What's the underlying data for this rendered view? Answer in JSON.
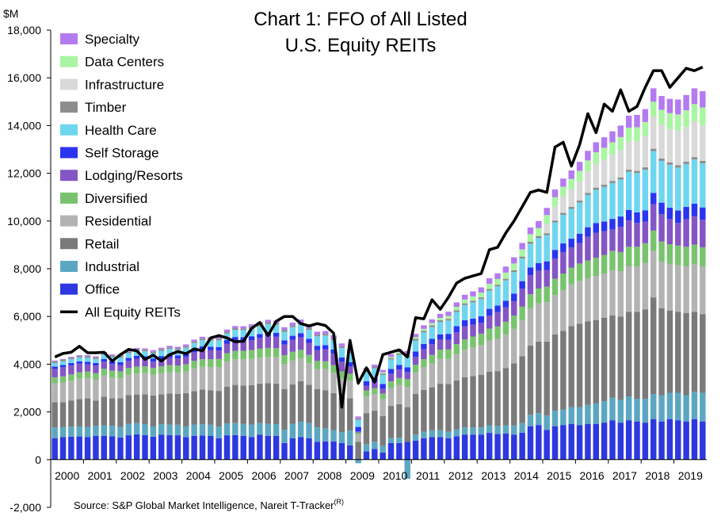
{
  "chart_data": {
    "type": "bar",
    "stacked": true,
    "title_lines": [
      "Chart 1: FFO of All Listed",
      "U.S. Equity REITs"
    ],
    "unit_label": "$M",
    "source": "Source: S&P Global Market Intelligence, Nareit T-Tracker",
    "source_sup": "(R)",
    "ylim": [
      -2000,
      18000
    ],
    "yticks": [
      -2000,
      0,
      2000,
      4000,
      6000,
      8000,
      10000,
      12000,
      14000,
      16000,
      18000
    ],
    "ytick_labels": [
      "-2,000",
      "0",
      "2,000",
      "4,000",
      "6,000",
      "8,000",
      "10,000",
      "12,000",
      "14,000",
      "16,000",
      "18,000"
    ],
    "xticks": [
      "2000",
      "2001",
      "2002",
      "2003",
      "2004",
      "2005",
      "2006",
      "2007",
      "2008",
      "2009",
      "2010",
      "2011",
      "2012",
      "2013",
      "2014",
      "2015",
      "2016",
      "2017",
      "2018",
      "2019"
    ],
    "quarters_per_year": 4,
    "grid": false,
    "legend_position": "top-left",
    "stack_order": [
      "Office",
      "Industrial",
      "Retail",
      "Residential",
      "Diversified",
      "Lodging/Resorts",
      "Self Storage",
      "Health Care",
      "Timber",
      "Infrastructure",
      "Data Centers",
      "Specialty"
    ],
    "series": [
      {
        "name": "Office",
        "color": "#2d38e0",
        "values": [
          900,
          940,
          960,
          970,
          950,
          990,
          1000,
          980,
          930,
          1020,
          1060,
          1030,
          960,
          1040,
          1030,
          1020,
          940,
          1000,
          1010,
          990,
          900,
          1020,
          1030,
          1000,
          950,
          1050,
          1000,
          990,
          700,
          900,
          950,
          900,
          750,
          760,
          760,
          700,
          600,
          0,
          350,
          450,
          300,
          700,
          700,
          750,
          800,
          900,
          950,
          950,
          900,
          980,
          1050,
          1050,
          1050,
          1120,
          1080,
          1100,
          1050,
          1130,
          1400,
          1450,
          1250,
          1400,
          1450,
          1500,
          1450,
          1500,
          1500,
          1550,
          1650,
          1550,
          1650,
          1600,
          1550,
          1700,
          1600,
          1700,
          1650,
          1600,
          1700,
          1600
        ]
      },
      {
        "name": "Industrial",
        "color": "#5ba7c2",
        "values": [
          450,
          420,
          420,
          420,
          420,
          430,
          440,
          440,
          440,
          480,
          470,
          460,
          430,
          450,
          440,
          440,
          450,
          470,
          480,
          470,
          480,
          490,
          500,
          500,
          520,
          480,
          500,
          500,
          550,
          600,
          640,
          640,
          600,
          550,
          480,
          450,
          620,
          -150,
          300,
          300,
          280,
          200,
          220,
          -800,
          250,
          270,
          280,
          280,
          270,
          290,
          300,
          300,
          300,
          320,
          330,
          340,
          380,
          400,
          480,
          500,
          600,
          650,
          650,
          700,
          750,
          800,
          850,
          900,
          950,
          950,
          1000,
          950,
          1000,
          1050,
          1100,
          1100,
          1150,
          1100,
          1150,
          1200
        ]
      },
      {
        "name": "Retail",
        "color": "#7a7a7a",
        "values": [
          1050,
          1050,
          1100,
          1150,
          1200,
          1050,
          1200,
          1150,
          1200,
          1200,
          1200,
          1250,
          1300,
          1250,
          1300,
          1300,
          1400,
          1400,
          1450,
          1450,
          1500,
          1550,
          1600,
          1600,
          1650,
          1650,
          1700,
          1700,
          1700,
          1650,
          1700,
          1600,
          1600,
          1600,
          1550,
          1450,
          1350,
          750,
          1300,
          1300,
          1250,
          1350,
          1400,
          1450,
          1700,
          1750,
          1800,
          1950,
          2000,
          2050,
          2100,
          2150,
          2200,
          2250,
          2300,
          2400,
          2600,
          2800,
          2900,
          3000,
          3100,
          3200,
          3300,
          3400,
          3500,
          3500,
          3500,
          3500,
          3450,
          3500,
          3550,
          3650,
          3750,
          4050,
          3650,
          3450,
          3400,
          3450,
          3350,
          3300
        ]
      },
      {
        "name": "Residential",
        "color": "#b3b3b3",
        "values": [
          800,
          820,
          830,
          850,
          850,
          880,
          890,
          880,
          850,
          860,
          880,
          880,
          870,
          880,
          890,
          880,
          900,
          950,
          950,
          970,
          1000,
          1050,
          1080,
          1100,
          1100,
          1100,
          1100,
          1100,
          1050,
          1000,
          950,
          900,
          850,
          880,
          850,
          800,
          750,
          300,
          700,
          700,
          700,
          750,
          800,
          850,
          900,
          950,
          1000,
          1050,
          1050,
          1100,
          1150,
          1200,
          1250,
          1300,
          1350,
          1400,
          1450,
          1500,
          1550,
          1600,
          1650,
          1650,
          1700,
          1750,
          1800,
          1800,
          1850,
          1850,
          1900,
          1900,
          1900,
          1900,
          1950,
          1950,
          1950,
          1950,
          1950,
          1950,
          2000,
          2000
        ]
      },
      {
        "name": "Diversified",
        "color": "#79c36f",
        "values": [
          250,
          260,
          260,
          270,
          270,
          270,
          280,
          280,
          280,
          280,
          290,
          290,
          290,
          290,
          300,
          300,
          310,
          320,
          320,
          330,
          340,
          350,
          350,
          360,
          370,
          370,
          380,
          380,
          380,
          370,
          360,
          350,
          340,
          330,
          320,
          300,
          280,
          80,
          250,
          250,
          240,
          280,
          300,
          320,
          330,
          340,
          360,
          380,
          400,
          420,
          440,
          460,
          480,
          500,
          520,
          540,
          560,
          580,
          600,
          620,
          650,
          680,
          700,
          700,
          720,
          740,
          760,
          780,
          800,
          800,
          820,
          820,
          820,
          850,
          840,
          830,
          820,
          820,
          810,
          800
        ]
      },
      {
        "name": "Lodging/Resorts",
        "color": "#8455c4",
        "values": [
          350,
          380,
          380,
          360,
          300,
          320,
          300,
          280,
          260,
          300,
          330,
          300,
          260,
          300,
          320,
          300,
          300,
          360,
          400,
          380,
          350,
          400,
          430,
          420,
          420,
          450,
          500,
          480,
          450,
          500,
          530,
          500,
          450,
          500,
          480,
          400,
          300,
          50,
          200,
          250,
          200,
          320,
          350,
          300,
          330,
          420,
          450,
          420,
          400,
          500,
          550,
          500,
          450,
          550,
          600,
          600,
          600,
          750,
          800,
          750,
          700,
          850,
          900,
          850,
          850,
          1000,
          1050,
          1000,
          900,
          1050,
          1100,
          1000,
          900,
          1100,
          1150,
          1050,
          950,
          1150,
          1200,
          1150
        ]
      },
      {
        "name": "Self Storage",
        "color": "#2a35f0",
        "values": [
          100,
          100,
          100,
          100,
          110,
          110,
          110,
          110,
          120,
          120,
          120,
          120,
          130,
          130,
          130,
          130,
          140,
          140,
          140,
          140,
          150,
          150,
          150,
          150,
          160,
          160,
          160,
          160,
          170,
          170,
          170,
          170,
          180,
          180,
          180,
          180,
          190,
          190,
          190,
          190,
          200,
          200,
          200,
          200,
          220,
          220,
          220,
          220,
          250,
          250,
          250,
          250,
          280,
          280,
          280,
          280,
          320,
          320,
          320,
          320,
          360,
          360,
          360,
          360,
          400,
          400,
          400,
          400,
          440,
          440,
          440,
          440,
          480,
          480,
          480,
          480,
          520,
          520,
          520,
          520
        ]
      },
      {
        "name": "Health Care",
        "color": "#6fd6ef",
        "values": [
          150,
          150,
          160,
          160,
          170,
          170,
          180,
          180,
          200,
          200,
          210,
          210,
          220,
          220,
          230,
          230,
          250,
          250,
          260,
          260,
          280,
          280,
          300,
          300,
          320,
          320,
          340,
          340,
          360,
          360,
          380,
          380,
          400,
          400,
          400,
          400,
          380,
          300,
          380,
          380,
          380,
          400,
          420,
          440,
          460,
          480,
          500,
          520,
          560,
          600,
          640,
          680,
          720,
          760,
          800,
          850,
          900,
          950,
          1000,
          1050,
          1100,
          1150,
          1200,
          1250,
          1300,
          1350,
          1400,
          1450,
          1500,
          1550,
          1600,
          1650,
          1700,
          1750,
          1750,
          1800,
          1800,
          1800,
          1850,
          1850
        ]
      },
      {
        "name": "Timber",
        "color": "#8d8d8d",
        "values": [
          60,
          60,
          60,
          60,
          60,
          60,
          60,
          60,
          60,
          60,
          60,
          60,
          60,
          60,
          60,
          60,
          60,
          60,
          60,
          60,
          70,
          70,
          70,
          70,
          80,
          80,
          80,
          80,
          80,
          80,
          80,
          80,
          70,
          70,
          70,
          70,
          60,
          60,
          60,
          60,
          60,
          60,
          60,
          60,
          70,
          70,
          70,
          70,
          70,
          70,
          70,
          70,
          70,
          70,
          70,
          70,
          80,
          80,
          80,
          80,
          80,
          80,
          80,
          80,
          90,
          90,
          90,
          90,
          90,
          90,
          90,
          90,
          100,
          100,
          100,
          100,
          100,
          100,
          100,
          100
        ]
      },
      {
        "name": "Infrastructure",
        "color": "#d9d9d9",
        "values": [
          0,
          0,
          0,
          0,
          0,
          0,
          0,
          0,
          0,
          0,
          0,
          0,
          0,
          0,
          0,
          0,
          0,
          0,
          0,
          0,
          0,
          0,
          0,
          0,
          0,
          0,
          0,
          0,
          0,
          0,
          0,
          0,
          0,
          0,
          0,
          0,
          0,
          0,
          0,
          0,
          0,
          0,
          0,
          0,
          0,
          0,
          0,
          0,
          0,
          0,
          0,
          0,
          0,
          0,
          0,
          0,
          0,
          0,
          0,
          0,
          400,
          600,
          700,
          750,
          800,
          900,
          1000,
          1050,
          1100,
          1150,
          1200,
          1250,
          1300,
          1350,
          1400,
          1400,
          1450,
          1450,
          1500,
          1500
        ]
      },
      {
        "name": "Data Centers",
        "color": "#a9f5a2",
        "values": [
          0,
          0,
          0,
          0,
          0,
          0,
          0,
          0,
          0,
          0,
          0,
          0,
          0,
          0,
          0,
          0,
          0,
          0,
          0,
          0,
          0,
          0,
          0,
          0,
          0,
          0,
          0,
          0,
          0,
          0,
          0,
          0,
          0,
          0,
          0,
          0,
          0,
          0,
          0,
          0,
          50,
          50,
          60,
          60,
          70,
          80,
          90,
          100,
          120,
          140,
          160,
          180,
          200,
          220,
          240,
          260,
          280,
          300,
          320,
          340,
          360,
          380,
          400,
          420,
          440,
          460,
          480,
          500,
          520,
          540,
          560,
          580,
          600,
          620,
          640,
          660,
          680,
          700,
          720,
          740
        ]
      },
      {
        "name": "Specialty",
        "color": "#b47af0",
        "values": [
          40,
          40,
          40,
          40,
          50,
          50,
          50,
          50,
          60,
          60,
          60,
          60,
          70,
          70,
          70,
          70,
          80,
          80,
          80,
          80,
          90,
          90,
          90,
          90,
          100,
          100,
          100,
          100,
          110,
          110,
          110,
          110,
          120,
          120,
          120,
          120,
          100,
          80,
          100,
          100,
          100,
          110,
          120,
          130,
          140,
          150,
          160,
          170,
          180,
          190,
          200,
          210,
          220,
          230,
          240,
          250,
          260,
          270,
          280,
          290,
          300,
          320,
          340,
          360,
          380,
          400,
          420,
          440,
          460,
          480,
          500,
          520,
          540,
          560,
          580,
          600,
          620,
          640,
          660,
          680
        ]
      }
    ],
    "total_series": {
      "name": "All Equity REITs",
      "color": "#000000",
      "values": [
        4300,
        4450,
        4500,
        4750,
        4480,
        4480,
        4500,
        4130,
        4400,
        4620,
        4560,
        4200,
        4380,
        4130,
        4400,
        4530,
        4440,
        4640,
        4560,
        5100,
        5200,
        5100,
        4940,
        4960,
        5500,
        5750,
        5200,
        5800,
        6000,
        6000,
        5700,
        5600,
        5700,
        5620,
        5300,
        2200,
        5000,
        3200,
        3850,
        3250,
        4400,
        4500,
        4600,
        4300,
        5950,
        5900,
        6700,
        6300,
        6800,
        7400,
        7600,
        7700,
        7800,
        8800,
        8900,
        9500,
        10000,
        10600,
        11200,
        11300,
        11200,
        13100,
        13300,
        12300,
        13200,
        14500,
        13700,
        14900,
        14600,
        15500,
        14600,
        14800,
        15600,
        16300,
        16300,
        15600,
        16000,
        16400,
        16300,
        16450
      ]
    },
    "legend": [
      "Specialty",
      "Data Centers",
      "Infrastructure",
      "Timber",
      "Health Care",
      "Self Storage",
      "Lodging/Resorts",
      "Diversified",
      "Residential",
      "Retail",
      "Industrial",
      "Office",
      "All Equity REITs"
    ]
  }
}
